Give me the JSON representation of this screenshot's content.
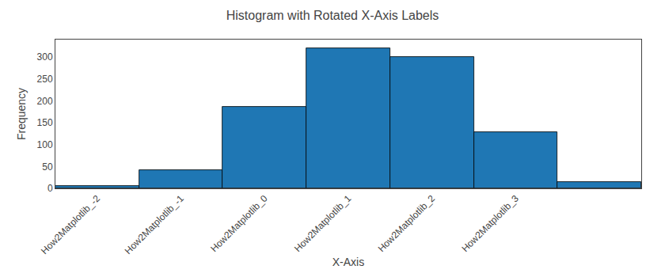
{
  "chart_data": {
    "type": "histogram",
    "title": "Histogram with Rotated X-Axis Labels",
    "xlabel": "X-Axis",
    "ylabel": "Frequency",
    "bins": [
      -2.5,
      -1.5,
      -0.5,
      0.5,
      1.5,
      2.5,
      3.5,
      4.5
    ],
    "values": [
      6,
      42,
      187,
      320,
      301,
      128,
      15
    ],
    "color": "#1f77b4",
    "xlim": [
      -2.5,
      4.5
    ],
    "xticks": [
      {
        "value": -2.0,
        "label": "How2Matplotlib_-2"
      },
      {
        "value": -1.0,
        "label": "How2Matplotlib_-1"
      },
      {
        "value": 0.0,
        "label": "How2Matplotlib_0"
      },
      {
        "value": 1.0,
        "label": "How2Matplotlib_1"
      },
      {
        "value": 2.0,
        "label": "How2Matplotlib_2"
      },
      {
        "value": 3.0,
        "label": "How2Matplotlib_3"
      }
    ],
    "ylim": [
      0,
      340
    ],
    "yticks": [
      0,
      50,
      100,
      150,
      200,
      250,
      300
    ],
    "grid": false
  }
}
